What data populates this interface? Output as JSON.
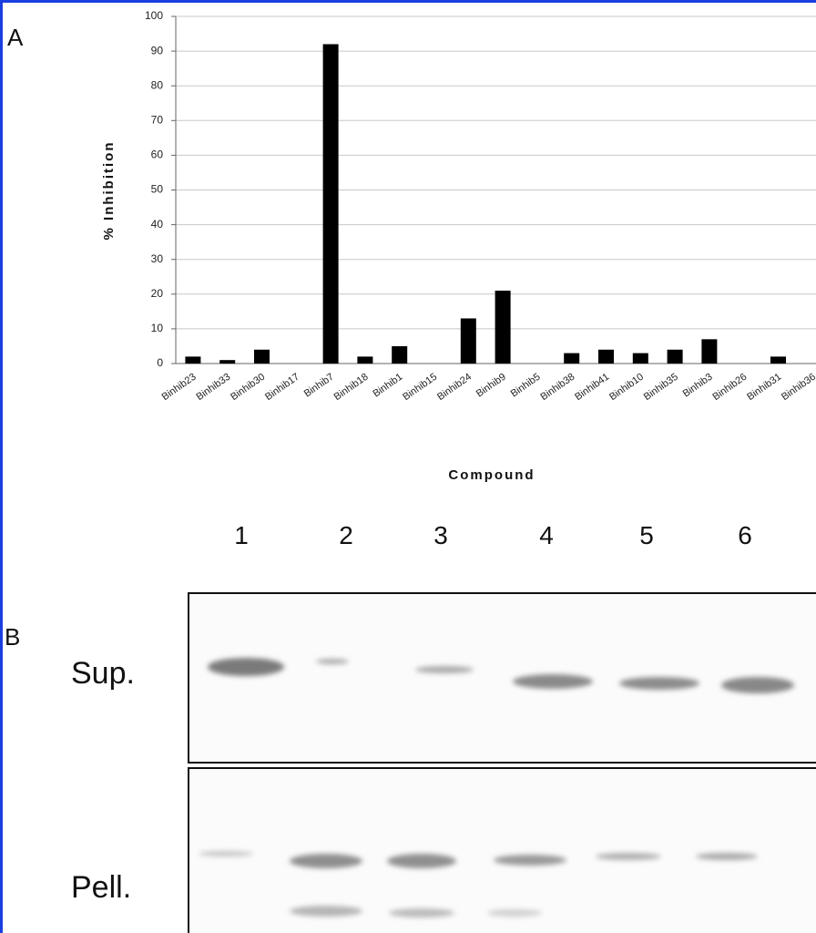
{
  "panel_a_label": "A",
  "chart_data": {
    "type": "bar",
    "y_label": "% Inhibition",
    "x_label": "Compound",
    "categories": [
      "Binhib23",
      "Binhib33",
      "Binhib30",
      "Binhib17",
      "Binhib7",
      "Binhib18",
      "Binhib1",
      "Binhib15",
      "Binhib24",
      "Binhib9",
      "Binhib5",
      "Binhib38",
      "Binhib41",
      "Binhib10",
      "Binhib35",
      "Binhib3",
      "Binhib26",
      "Binhib31",
      "Binhib36"
    ],
    "values": [
      2,
      1,
      4,
      0,
      92,
      2,
      5,
      0,
      13,
      21,
      0,
      3,
      4,
      3,
      4,
      7,
      0,
      2,
      0
    ],
    "color": "#000000",
    "ylim": [
      0,
      100
    ],
    "yticks": [
      0,
      10,
      20,
      30,
      40,
      50,
      60,
      70,
      80,
      90,
      100
    ],
    "grid": true
  },
  "panel_b": {
    "label": "B",
    "lanes": [
      "1",
      "2",
      "3",
      "4",
      "5",
      "6"
    ],
    "rows": [
      "Sup.",
      "Pell."
    ]
  }
}
